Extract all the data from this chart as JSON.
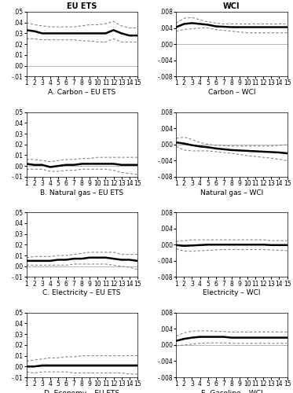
{
  "panels": [
    {
      "title_top": "EU ETS",
      "title_bot": "A. Carbon – EU ETS",
      "ylim": [
        -0.01,
        0.05
      ],
      "yticks": [
        -0.01,
        0.0,
        0.01,
        0.02,
        0.03,
        0.04,
        0.05
      ],
      "ytick_labels": [
        "-.01",
        ".00",
        ".01",
        ".02",
        ".03",
        ".04",
        ".05"
      ],
      "irf": [
        0.033,
        0.032,
        0.03,
        0.03,
        0.03,
        0.03,
        0.03,
        0.03,
        0.03,
        0.03,
        0.03,
        0.033,
        0.03,
        0.028,
        0.028
      ],
      "upper": [
        0.04,
        0.038,
        0.037,
        0.036,
        0.036,
        0.036,
        0.036,
        0.037,
        0.038,
        0.038,
        0.039,
        0.041,
        0.037,
        0.035,
        0.035
      ],
      "lower": [
        0.025,
        0.025,
        0.024,
        0.024,
        0.024,
        0.024,
        0.024,
        0.023,
        0.023,
        0.022,
        0.022,
        0.025,
        0.022,
        0.022,
        0.022
      ]
    },
    {
      "title_top": "WCI",
      "title_bot": "Carbon – WCI",
      "ylim": [
        -0.008,
        0.008
      ],
      "yticks": [
        -0.008,
        -0.004,
        0.0,
        0.004,
        0.008
      ],
      "ytick_labels": [
        "-.008",
        "-.004",
        ".000",
        ".004",
        ".008"
      ],
      "irf": [
        0.0042,
        0.005,
        0.0052,
        0.005,
        0.0048,
        0.0044,
        0.0043,
        0.0042,
        0.0042,
        0.0042,
        0.0042,
        0.0042,
        0.0042,
        0.0042,
        0.0042
      ],
      "upper": [
        0.0052,
        0.0064,
        0.0066,
        0.006,
        0.0055,
        0.0052,
        0.005,
        0.005,
        0.005,
        0.005,
        0.005,
        0.005,
        0.005,
        0.005,
        0.005
      ],
      "lower": [
        0.0032,
        0.0036,
        0.0038,
        0.004,
        0.004,
        0.0036,
        0.0034,
        0.0032,
        0.003,
        0.0028,
        0.0028,
        0.0028,
        0.0028,
        0.0028,
        0.0028
      ]
    },
    {
      "title_top": null,
      "title_bot": "B. Natural gas – EU ETS",
      "ylim": [
        -0.01,
        0.05
      ],
      "yticks": [
        -0.01,
        0.0,
        0.01,
        0.02,
        0.03,
        0.04,
        0.05
      ],
      "ytick_labels": [
        "-.01",
        ".00",
        ".01",
        ".02",
        ".03",
        ".04",
        ".05"
      ],
      "irf": [
        0.002,
        0.001,
        0.001,
        -0.001,
        0.0,
        0.001,
        0.001,
        0.002,
        0.002,
        0.002,
        0.002,
        0.002,
        0.001,
        0.001,
        0.001
      ],
      "upper": [
        0.006,
        0.006,
        0.005,
        0.004,
        0.005,
        0.006,
        0.006,
        0.007,
        0.007,
        0.008,
        0.008,
        0.008,
        0.008,
        0.008,
        0.008
      ],
      "lower": [
        -0.003,
        -0.003,
        -0.003,
        -0.005,
        -0.005,
        -0.004,
        -0.004,
        -0.003,
        -0.003,
        -0.003,
        -0.003,
        -0.004,
        -0.006,
        -0.007,
        -0.008
      ]
    },
    {
      "title_top": null,
      "title_bot": "Natural gas – WCI",
      "ylim": [
        -0.008,
        0.008
      ],
      "yticks": [
        -0.008,
        -0.004,
        0.0,
        0.004,
        0.008
      ],
      "ytick_labels": [
        "-.008",
        "-.004",
        ".000",
        ".004",
        ".008"
      ],
      "irf": [
        0.0005,
        0.0002,
        -0.0002,
        -0.0005,
        -0.0007,
        -0.001,
        -0.0012,
        -0.0014,
        -0.0015,
        -0.0016,
        -0.0017,
        -0.0018,
        -0.0019,
        -0.002,
        -0.0022
      ],
      "upper": [
        0.0015,
        0.0018,
        0.0012,
        0.0005,
        0.0,
        -0.0002,
        -0.0003,
        -0.0004,
        -0.0004,
        -0.0004,
        -0.0004,
        -0.0004,
        -0.0004,
        -0.0002,
        -0.0001
      ],
      "lower": [
        -0.0005,
        -0.0014,
        -0.0016,
        -0.0016,
        -0.0016,
        -0.0018,
        -0.002,
        -0.0022,
        -0.0025,
        -0.0028,
        -0.003,
        -0.0032,
        -0.0034,
        -0.0037,
        -0.004
      ]
    },
    {
      "title_top": null,
      "title_bot": "C. Electricity – EU ETS",
      "ylim": [
        -0.01,
        0.05
      ],
      "yticks": [
        -0.01,
        0.0,
        0.01,
        0.02,
        0.03,
        0.04,
        0.05
      ],
      "ytick_labels": [
        "-.01",
        ".00",
        ".01",
        ".02",
        ".03",
        ".04",
        ".05"
      ],
      "irf": [
        0.005,
        0.005,
        0.005,
        0.005,
        0.006,
        0.006,
        0.007,
        0.007,
        0.008,
        0.008,
        0.008,
        0.007,
        0.006,
        0.006,
        0.005
      ],
      "upper": [
        0.008,
        0.009,
        0.009,
        0.009,
        0.01,
        0.01,
        0.011,
        0.012,
        0.013,
        0.013,
        0.013,
        0.013,
        0.011,
        0.011,
        0.011
      ],
      "lower": [
        0.001,
        0.001,
        0.001,
        0.001,
        0.001,
        0.001,
        0.002,
        0.002,
        0.002,
        0.002,
        0.002,
        0.001,
        0.0,
        -0.001,
        -0.003
      ]
    },
    {
      "title_top": null,
      "title_bot": "Electricity – WCI",
      "ylim": [
        -0.008,
        0.008
      ],
      "yticks": [
        -0.008,
        -0.004,
        0.0,
        0.004,
        0.008
      ],
      "ytick_labels": [
        "-.008",
        "-.004",
        ".000",
        ".004",
        ".008"
      ],
      "irf": [
        -0.0001,
        -0.0003,
        -0.0002,
        -0.0001,
        0.0,
        0.0,
        0.0,
        0.0,
        0.0,
        0.0,
        0.0,
        0.0,
        -0.0001,
        -0.0001,
        -0.0001
      ],
      "upper": [
        0.0008,
        0.001,
        0.0012,
        0.0012,
        0.0012,
        0.0012,
        0.0012,
        0.0012,
        0.0012,
        0.0012,
        0.0012,
        0.0012,
        0.001,
        0.001,
        0.001
      ],
      "lower": [
        -0.001,
        -0.0016,
        -0.0016,
        -0.0015,
        -0.0014,
        -0.0013,
        -0.0012,
        -0.0012,
        -0.0012,
        -0.0012,
        -0.0012,
        -0.0012,
        -0.0013,
        -0.0014,
        -0.0015
      ]
    },
    {
      "title_top": null,
      "title_bot": "D. Economy – EU ETS",
      "ylim": [
        -0.01,
        0.05
      ],
      "yticks": [
        -0.01,
        0.0,
        0.01,
        0.02,
        0.03,
        0.04,
        0.05
      ],
      "ytick_labels": [
        "-.01",
        ".00",
        ".01",
        ".02",
        ".03",
        ".04",
        ".05"
      ],
      "irf": [
        0.0,
        0.0,
        0.001,
        0.001,
        0.001,
        0.001,
        0.001,
        0.001,
        0.001,
        0.001,
        0.001,
        0.001,
        0.001,
        0.001,
        0.001
      ],
      "upper": [
        0.005,
        0.006,
        0.007,
        0.008,
        0.008,
        0.009,
        0.009,
        0.01,
        0.01,
        0.01,
        0.01,
        0.01,
        0.01,
        0.01,
        0.01
      ],
      "lower": [
        -0.005,
        -0.006,
        -0.005,
        -0.005,
        -0.005,
        -0.005,
        -0.006,
        -0.006,
        -0.006,
        -0.006,
        -0.006,
        -0.006,
        -0.006,
        -0.007,
        -0.007
      ]
    },
    {
      "title_top": null,
      "title_bot": "E. Gasoline – WCI",
      "ylim": [
        -0.008,
        0.008
      ],
      "yticks": [
        -0.008,
        -0.004,
        0.0,
        0.004,
        0.008
      ],
      "ytick_labels": [
        "-.008",
        "-.004",
        ".000",
        ".004",
        ".008"
      ],
      "irf": [
        0.001,
        0.0015,
        0.0018,
        0.002,
        0.002,
        0.002,
        0.002,
        0.0018,
        0.0018,
        0.0018,
        0.0018,
        0.0018,
        0.0018,
        0.0018,
        0.0018
      ],
      "upper": [
        0.0022,
        0.003,
        0.0034,
        0.0035,
        0.0035,
        0.0034,
        0.0033,
        0.0032,
        0.0032,
        0.0032,
        0.0032,
        0.0032,
        0.0032,
        0.0032,
        0.0032
      ],
      "lower": [
        -0.0002,
        0.0,
        0.0002,
        0.0004,
        0.0005,
        0.0005,
        0.0005,
        0.0004,
        0.0004,
        0.0004,
        0.0004,
        0.0004,
        0.0004,
        0.0004,
        0.0004
      ]
    }
  ],
  "irf_color": "#000000",
  "ci_color": "#888888",
  "zero_color": "#aaaaaa",
  "irf_lw": 1.8,
  "ci_lw": 0.8,
  "zero_lw": 0.6,
  "fontsize_title": 7,
  "fontsize_label": 6.5,
  "fontsize_tick": 5.5,
  "x": [
    1,
    2,
    3,
    4,
    5,
    6,
    7,
    8,
    9,
    10,
    11,
    12,
    13,
    14,
    15
  ]
}
